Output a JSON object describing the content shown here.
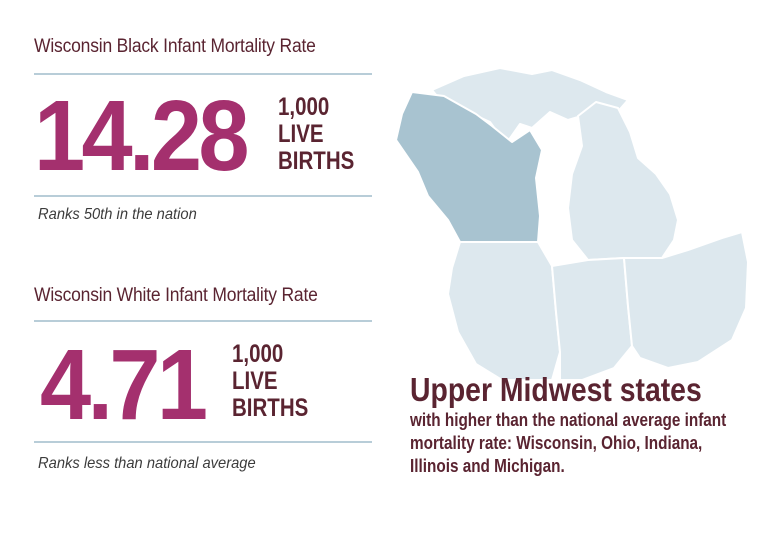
{
  "black": {
    "title": "Wisconsin Black Infant Mortality Rate",
    "rate": "14.28",
    "unit_line1": "1,000",
    "unit_line2": "LIVE",
    "unit_line3": "BIRTHS",
    "rank": "Ranks 50th in the nation"
  },
  "white": {
    "title": "Wisconsin White Infant Mortality Rate",
    "rate": "4.71",
    "unit_line1": "1,000",
    "unit_line2": "LIVE",
    "unit_line3": "BIRTHS",
    "rank": "Ranks less than national average"
  },
  "callout": {
    "heading": "Upper Midwest states",
    "body": "with higher than the national average infant mortality rate: Wisconsin, Ohio, Indiana, Illinois and Michigan."
  },
  "colors": {
    "accent": "#a4306e",
    "text_dark": "#5a2431",
    "rule": "#b8cdd8",
    "wisconsin": "#a8c3d0",
    "other_states": "#dde8ee"
  }
}
